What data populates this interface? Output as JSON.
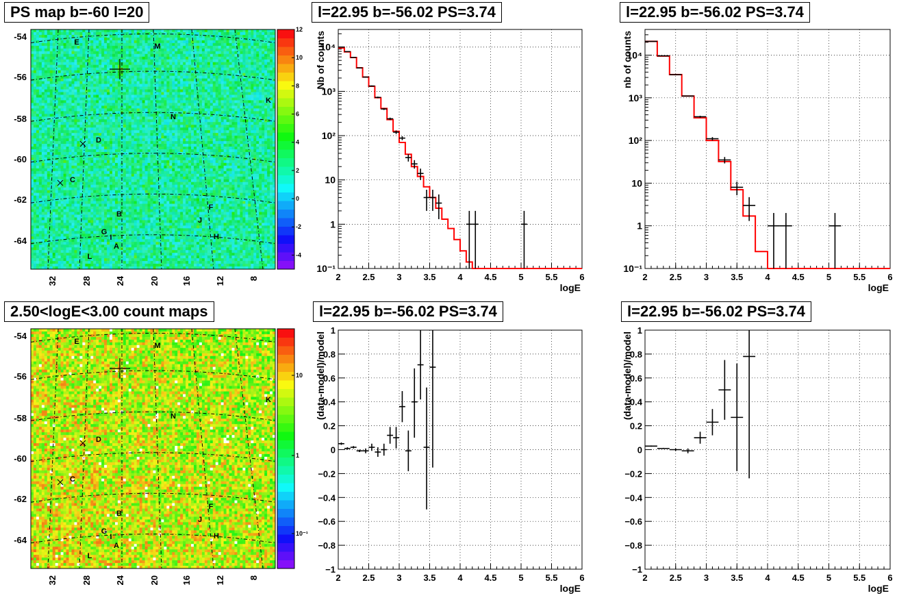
{
  "panels": {
    "map_top_title": "PS map b=-60 l=20",
    "map_bottom_title": "2.50<logE<3.00 count maps",
    "spectrum_left_title": "l=22.95 b=-56.02 PS=3.74",
    "spectrum_right_title": "l=22.95 b=-56.02 PS=3.74",
    "residual_left_title": "l=22.95 b=-56.02 PS=3.74",
    "residual_right_title": "l=22.95 b=-56.02 PS=3.74"
  },
  "map_axes": {
    "lat_ticks": [
      "-54",
      "-56",
      "-58",
      "-60",
      "-62",
      "-64"
    ],
    "lon_ticks": [
      "32",
      "28",
      "24",
      "20",
      "16",
      "12",
      "8"
    ]
  },
  "map_labels": [
    "E",
    "M",
    "K",
    "N",
    "D",
    "C",
    "F",
    "B",
    "J",
    "G",
    "I",
    "H",
    "A",
    "L"
  ],
  "colors": {
    "model_line": "#ff0000",
    "data_points": "#000000"
  },
  "chart_data": [
    {
      "type": "heatmap",
      "title": "PS map b=-60 l=20",
      "colorbar": {
        "scale": "linear",
        "range": [
          -5,
          12
        ],
        "ticks": [
          "12",
          "10",
          "8",
          "6",
          "4",
          "2",
          "0",
          "-2",
          "-4"
        ]
      },
      "y_ticks": [
        "-54",
        "-56",
        "-58",
        "-60",
        "-62",
        "-64"
      ],
      "x_ticks": [
        "32",
        "28",
        "24",
        "20",
        "16",
        "12",
        "8"
      ],
      "sources": [
        "E",
        "M",
        "K",
        "N",
        "D",
        "C",
        "F",
        "B",
        "J",
        "G",
        "I",
        "H",
        "A",
        "L"
      ]
    },
    {
      "type": "heatmap",
      "title": "2.50<logE<3.00 count maps",
      "colorbar": {
        "scale": "log",
        "ticks": [
          "10",
          "1",
          "10⁻¹"
        ]
      },
      "y_ticks": [
        "-54",
        "-56",
        "-58",
        "-60",
        "-62",
        "-64"
      ],
      "x_ticks": [
        "32",
        "28",
        "24",
        "20",
        "16",
        "12",
        "8"
      ],
      "sources": [
        "E",
        "M",
        "K",
        "N",
        "D",
        "C",
        "F",
        "B",
        "J",
        "G",
        "I",
        "H",
        "A",
        "L"
      ]
    },
    {
      "type": "line",
      "title": "l=22.95 b=-56.02 PS=3.74",
      "xlabel": "logE",
      "ylabel": "Nb of counts",
      "xlim": [
        2,
        6
      ],
      "ylim": [
        0.1,
        25000
      ],
      "yscale": "log",
      "grid": true,
      "x_ticks": [
        "2",
        "2.5",
        "3",
        "3.5",
        "4",
        "4.5",
        "5",
        "5.5",
        "6"
      ],
      "y_ticks": [
        {
          "v": 0.1,
          "t": "10⁻¹"
        },
        {
          "v": 1,
          "t": "1"
        },
        {
          "v": 10,
          "t": "10"
        },
        {
          "v": 100,
          "t": "10²"
        },
        {
          "v": 1000,
          "t": "10³"
        },
        {
          "v": 10000,
          "t": "10⁴"
        }
      ],
      "bin_width": 0.1,
      "model_bins": [
        9500,
        7800,
        5800,
        3400,
        2100,
        1300,
        720,
        410,
        230,
        125,
        70,
        38,
        20,
        12,
        7,
        4,
        2.3,
        1.3,
        0.8,
        0.45,
        0.25,
        0.14,
        0.1,
        0.1,
        0.1,
        0.1,
        0.1,
        0.1,
        0.1,
        0.1,
        0.1,
        0.1,
        0.1,
        0.1,
        0.1,
        0.1,
        0.1,
        0.1,
        0.1,
        0.1
      ],
      "points": [
        {
          "x": 2.05,
          "y": 10000,
          "lo": 9900,
          "hi": 10100
        },
        {
          "x": 2.15,
          "y": 7900,
          "lo": 7810,
          "hi": 7990
        },
        {
          "x": 2.25,
          "y": 5850,
          "lo": 5770,
          "hi": 5930
        },
        {
          "x": 2.35,
          "y": 3380,
          "lo": 3320,
          "hi": 3440
        },
        {
          "x": 2.45,
          "y": 2100,
          "lo": 2050,
          "hi": 2150
        },
        {
          "x": 2.55,
          "y": 1320,
          "lo": 1280,
          "hi": 1360
        },
        {
          "x": 2.65,
          "y": 730,
          "lo": 700,
          "hi": 760
        },
        {
          "x": 2.75,
          "y": 400,
          "lo": 380,
          "hi": 420
        },
        {
          "x": 2.85,
          "y": 240,
          "lo": 225,
          "hi": 255
        },
        {
          "x": 2.95,
          "y": 120,
          "lo": 109,
          "hi": 131
        },
        {
          "x": 3.05,
          "y": 88,
          "lo": 79,
          "hi": 97
        },
        {
          "x": 3.15,
          "y": 32,
          "lo": 26,
          "hi": 38
        },
        {
          "x": 3.25,
          "y": 23,
          "lo": 18,
          "hi": 28
        },
        {
          "x": 3.35,
          "y": 14,
          "lo": 10,
          "hi": 18
        },
        {
          "x": 3.45,
          "y": 4,
          "lo": 2,
          "hi": 6
        },
        {
          "x": 3.55,
          "y": 4,
          "lo": 2,
          "hi": 6
        },
        {
          "x": 3.65,
          "y": 3,
          "lo": 1.3,
          "hi": 4.7
        },
        {
          "x": 4.15,
          "y": 1,
          "lo": 0.1,
          "hi": 2
        },
        {
          "x": 4.25,
          "y": 1,
          "lo": 0.1,
          "hi": 2
        },
        {
          "x": 5.05,
          "y": 1,
          "lo": 0.1,
          "hi": 2
        }
      ]
    },
    {
      "type": "line",
      "title": "l=22.95 b=-56.02 PS=3.74",
      "xlabel": "logE",
      "ylabel": "nb of counts",
      "xlim": [
        2,
        6
      ],
      "ylim": [
        0.1,
        40000
      ],
      "yscale": "log",
      "grid": true,
      "x_ticks": [
        "2",
        "2.5",
        "3",
        "3.5",
        "4",
        "4.5",
        "5",
        "5.5",
        "6"
      ],
      "y_ticks": [
        {
          "v": 0.1,
          "t": "10⁻¹"
        },
        {
          "v": 1,
          "t": "1"
        },
        {
          "v": 10,
          "t": "10"
        },
        {
          "v": 100,
          "t": "10²"
        },
        {
          "v": 1000,
          "t": "10³"
        },
        {
          "v": 10000,
          "t": "10⁴"
        }
      ],
      "bin_width": 0.2,
      "model_bins": [
        21000,
        9500,
        3500,
        1100,
        340,
        100,
        32,
        7,
        1.7,
        0.25,
        0.1,
        0.1,
        0.1,
        0.1,
        0.1,
        0.1,
        0.1,
        0.1,
        0.1,
        0.1
      ],
      "points": [
        {
          "x": 2.1,
          "y": 21000,
          "lo": 20850,
          "hi": 21150
        },
        {
          "x": 2.3,
          "y": 9600,
          "lo": 9500,
          "hi": 9700
        },
        {
          "x": 2.5,
          "y": 3500,
          "lo": 3440,
          "hi": 3560
        },
        {
          "x": 2.7,
          "y": 1100,
          "lo": 1070,
          "hi": 1130
        },
        {
          "x": 2.9,
          "y": 360,
          "lo": 341,
          "hi": 379
        },
        {
          "x": 3.1,
          "y": 110,
          "lo": 100,
          "hi": 120
        },
        {
          "x": 3.3,
          "y": 35,
          "lo": 29,
          "hi": 41
        },
        {
          "x": 3.5,
          "y": 8,
          "lo": 5.2,
          "hi": 10.8
        },
        {
          "x": 3.7,
          "y": 3,
          "lo": 1.3,
          "hi": 4.7
        },
        {
          "x": 4.1,
          "y": 1,
          "lo": 0.1,
          "hi": 2
        },
        {
          "x": 4.3,
          "y": 1,
          "lo": 0.1,
          "hi": 2
        },
        {
          "x": 5.1,
          "y": 1,
          "lo": 0.1,
          "hi": 2
        }
      ]
    },
    {
      "type": "scatter",
      "title": "l=22.95 b=-56.02 PS=3.74",
      "xlabel": "logE",
      "ylabel": "(data-model)/model",
      "xlim": [
        2,
        6
      ],
      "ylim": [
        -1,
        1
      ],
      "grid": true,
      "x_ticks": [
        "2",
        "2.5",
        "3",
        "3.5",
        "4",
        "4.5",
        "5",
        "5.5",
        "6"
      ],
      "y_ticks": [
        "-1",
        "-0.8",
        "-0.6",
        "-0.4",
        "-0.2",
        "0",
        "0.2",
        "0.4",
        "0.6",
        "0.8",
        "1"
      ],
      "bin_width": 0.1,
      "points": [
        {
          "x": 2.05,
          "y": 0.05,
          "lo": 0.04,
          "hi": 0.06
        },
        {
          "x": 2.15,
          "y": 0.01,
          "lo": 0.0,
          "hi": 0.02
        },
        {
          "x": 2.25,
          "y": 0.02,
          "lo": 0.01,
          "hi": 0.03
        },
        {
          "x": 2.35,
          "y": -0.01,
          "lo": -0.02,
          "hi": 0.0
        },
        {
          "x": 2.45,
          "y": -0.01,
          "lo": -0.03,
          "hi": 0.01
        },
        {
          "x": 2.55,
          "y": 0.02,
          "lo": -0.01,
          "hi": 0.05
        },
        {
          "x": 2.65,
          "y": -0.02,
          "lo": -0.06,
          "hi": 0.02
        },
        {
          "x": 2.75,
          "y": 0.0,
          "lo": -0.05,
          "hi": 0.05
        },
        {
          "x": 2.85,
          "y": 0.12,
          "lo": 0.05,
          "hi": 0.19
        },
        {
          "x": 2.95,
          "y": 0.1,
          "lo": 0.01,
          "hi": 0.19
        },
        {
          "x": 3.05,
          "y": 0.36,
          "lo": 0.23,
          "hi": 0.49
        },
        {
          "x": 3.15,
          "y": -0.01,
          "lo": -0.18,
          "hi": 0.16
        },
        {
          "x": 3.25,
          "y": 0.4,
          "lo": 0.1,
          "hi": 0.68
        },
        {
          "x": 3.35,
          "y": 0.71,
          "lo": 0.42,
          "hi": 1.0
        },
        {
          "x": 3.45,
          "y": 0.02,
          "lo": -0.5,
          "hi": 0.52
        },
        {
          "x": 3.55,
          "y": 0.69,
          "lo": -0.15,
          "hi": 1.0
        }
      ]
    },
    {
      "type": "scatter",
      "title": "l=22.95 b=-56.02 PS=3.74",
      "xlabel": "logE",
      "ylabel": "(data-model)/model",
      "xlim": [
        2,
        6
      ],
      "ylim": [
        -1,
        1
      ],
      "grid": true,
      "x_ticks": [
        "2",
        "2.5",
        "3",
        "3.5",
        "4",
        "4.5",
        "5",
        "5.5",
        "6"
      ],
      "y_ticks": [
        "-1",
        "-0.8",
        "-0.6",
        "-0.4",
        "-0.2",
        "0",
        "0.2",
        "0.4",
        "0.6",
        "0.8",
        "1"
      ],
      "bin_width": 0.2,
      "points": [
        {
          "x": 2.1,
          "y": 0.03,
          "lo": 0.025,
          "hi": 0.035
        },
        {
          "x": 2.3,
          "y": 0.01,
          "lo": 0.005,
          "hi": 0.015
        },
        {
          "x": 2.5,
          "y": 0.0,
          "lo": -0.01,
          "hi": 0.01
        },
        {
          "x": 2.7,
          "y": -0.01,
          "lo": -0.03,
          "hi": 0.01
        },
        {
          "x": 2.9,
          "y": 0.1,
          "lo": 0.05,
          "hi": 0.15
        },
        {
          "x": 3.1,
          "y": 0.23,
          "lo": 0.12,
          "hi": 0.34
        },
        {
          "x": 3.3,
          "y": 0.5,
          "lo": 0.25,
          "hi": 0.75
        },
        {
          "x": 3.5,
          "y": 0.27,
          "lo": -0.18,
          "hi": 0.72
        },
        {
          "x": 3.7,
          "y": 0.78,
          "lo": -0.24,
          "hi": 1.0
        }
      ]
    }
  ]
}
